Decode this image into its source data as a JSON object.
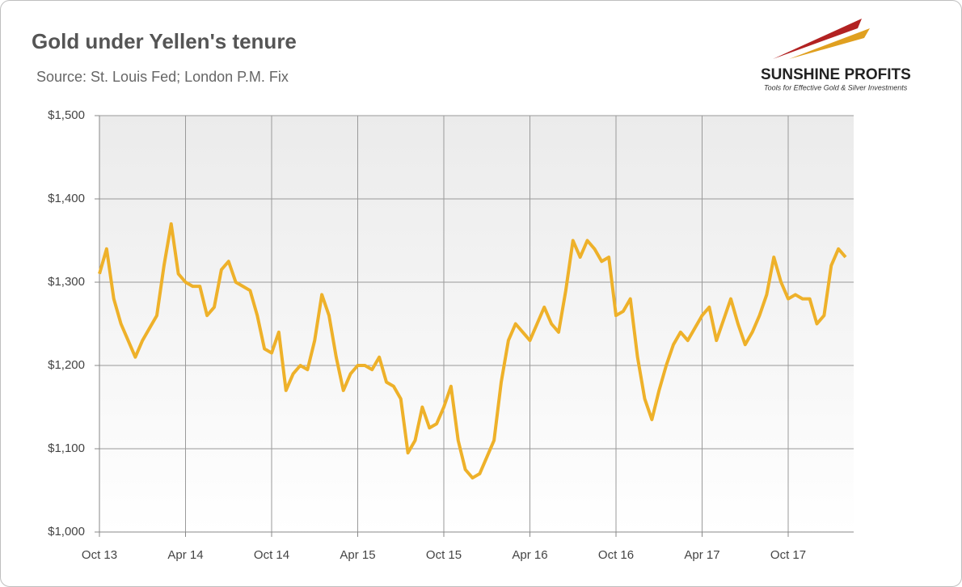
{
  "chart_data": {
    "type": "line",
    "title": "Gold under Yellen's tenure",
    "subtitle": "Source: St. Louis Fed; London P.M. Fix",
    "brand": "SUNSHINE PROFITS",
    "tagline": "Tools for Effective Gold & Silver Investments",
    "categories": [
      "Oct 13",
      null,
      null,
      null,
      null,
      null,
      null,
      null,
      null,
      null,
      null,
      null,
      "Apr 14",
      null,
      null,
      null,
      null,
      null,
      null,
      null,
      null,
      null,
      null,
      null,
      "Oct 14",
      null,
      null,
      null,
      null,
      null,
      null,
      null,
      null,
      null,
      null,
      null,
      "Apr 15",
      null,
      null,
      null,
      null,
      null,
      null,
      null,
      null,
      null,
      null,
      null,
      "Oct 15",
      null,
      null,
      null,
      null,
      null,
      null,
      null,
      null,
      null,
      null,
      null,
      "Apr 16",
      null,
      null,
      null,
      null,
      null,
      null,
      null,
      null,
      null,
      null,
      null,
      "Oct 16",
      null,
      null,
      null,
      null,
      null,
      null,
      null,
      null,
      null,
      null,
      null,
      "Apr 17",
      null,
      null,
      null,
      null,
      null,
      null,
      null,
      null,
      null,
      null,
      null,
      "Oct 17",
      null,
      null,
      null,
      null,
      null,
      null,
      null,
      null
    ],
    "series": [
      {
        "name": "Gold",
        "color": "#eeb12a",
        "values": [
          1310,
          1340,
          1280,
          1250,
          1230,
          1210,
          1230,
          1245,
          1260,
          1320,
          1370,
          1310,
          1300,
          1295,
          1295,
          1260,
          1270,
          1315,
          1325,
          1300,
          1295,
          1290,
          1260,
          1220,
          1215,
          1240,
          1170,
          1190,
          1200,
          1195,
          1230,
          1285,
          1260,
          1210,
          1170,
          1190,
          1200,
          1200,
          1195,
          1210,
          1180,
          1175,
          1160,
          1095,
          1110,
          1150,
          1125,
          1130,
          1150,
          1175,
          1110,
          1075,
          1065,
          1070,
          1090,
          1110,
          1180,
          1230,
          1250,
          1240,
          1230,
          1250,
          1270,
          1250,
          1240,
          1290,
          1350,
          1330,
          1350,
          1340,
          1325,
          1330,
          1260,
          1265,
          1280,
          1210,
          1160,
          1135,
          1170,
          1200,
          1225,
          1240,
          1230,
          1245,
          1260,
          1270,
          1230,
          1255,
          1280,
          1250,
          1225,
          1240,
          1260,
          1285,
          1330,
          1300,
          1280,
          1285,
          1280,
          1280,
          1250,
          1260,
          1320,
          1340,
          1330
        ]
      }
    ],
    "ylim": [
      1000,
      1500
    ],
    "yticks": [
      {
        "value": 1000,
        "label": "$1,000"
      },
      {
        "value": 1100,
        "label": "$1,100"
      },
      {
        "value": 1200,
        "label": "$1,200"
      },
      {
        "value": 1300,
        "label": "$1,300"
      },
      {
        "value": 1400,
        "label": "$1,400"
      },
      {
        "value": 1500,
        "label": "$1,500"
      }
    ],
    "grid": true
  }
}
